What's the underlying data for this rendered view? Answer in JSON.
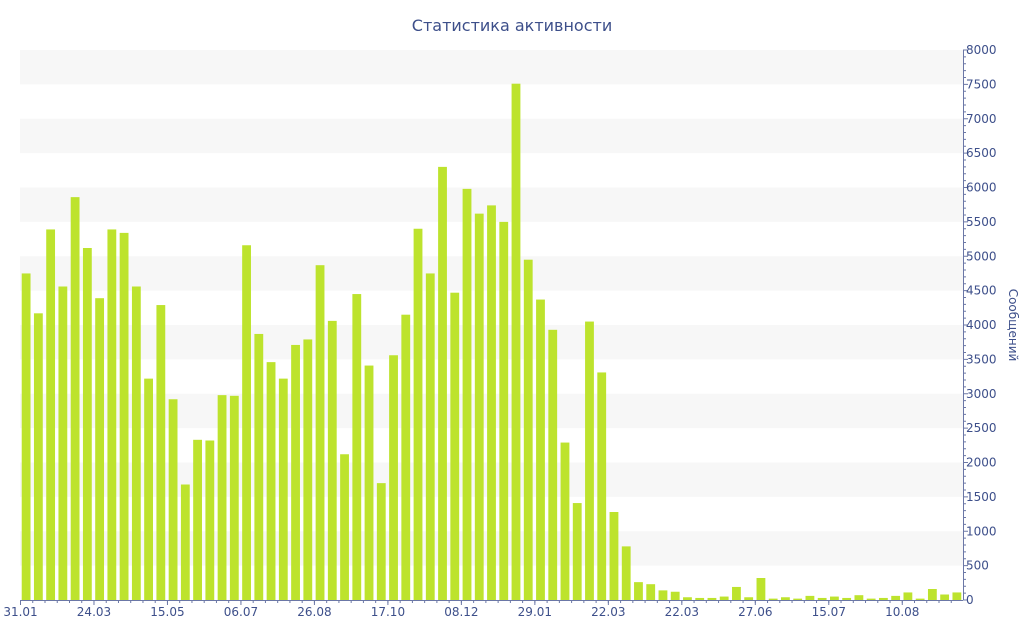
{
  "chart_data": {
    "type": "bar",
    "title": "Статистика активности",
    "ylabel": "Сообщений",
    "xlabel": "",
    "ylim": [
      0,
      8000
    ],
    "y_ticks": [
      0,
      500,
      1000,
      1500,
      2000,
      2500,
      3000,
      3500,
      4000,
      4500,
      5000,
      5500,
      6000,
      6500,
      7000,
      7500,
      8000
    ],
    "x_tick_labels": [
      {
        "label": "31.01",
        "index": 0
      },
      {
        "label": "24.03",
        "index": 6
      },
      {
        "label": "15.05",
        "index": 12
      },
      {
        "label": "06.07",
        "index": 18
      },
      {
        "label": "26.08",
        "index": 24
      },
      {
        "label": "17.10",
        "index": 30
      },
      {
        "label": "08.12",
        "index": 36
      },
      {
        "label": "29.01",
        "index": 42
      },
      {
        "label": "22.03",
        "index": 48
      },
      {
        "label": "22.03",
        "index": 54
      },
      {
        "label": "27.06",
        "index": 60
      },
      {
        "label": "15.07",
        "index": 66
      },
      {
        "label": "10.08",
        "index": 72
      }
    ],
    "values": [
      4750,
      4170,
      5390,
      4560,
      5860,
      5120,
      4390,
      5390,
      5340,
      4560,
      3220,
      4290,
      2920,
      1680,
      2330,
      2320,
      2980,
      2970,
      5160,
      3870,
      3460,
      3220,
      3710,
      3790,
      4870,
      4060,
      2120,
      4450,
      3410,
      1700,
      3560,
      4150,
      5400,
      4750,
      6300,
      4470,
      5980,
      5620,
      5740,
      5500,
      7510,
      4950,
      4370,
      3930,
      2290,
      1410,
      4050,
      3310,
      1280,
      780,
      260,
      230,
      140,
      120,
      40,
      30,
      30,
      50,
      190,
      40,
      320,
      20,
      40,
      20,
      60,
      30,
      50,
      30,
      70,
      20,
      30,
      60,
      110,
      20,
      160,
      80,
      110
    ],
    "grid": true,
    "legend": "none",
    "colors": {
      "bar": "#bde32d",
      "text": "#3d4f8a",
      "axis": "#6b77a6",
      "band": "#f7f7f7"
    }
  }
}
